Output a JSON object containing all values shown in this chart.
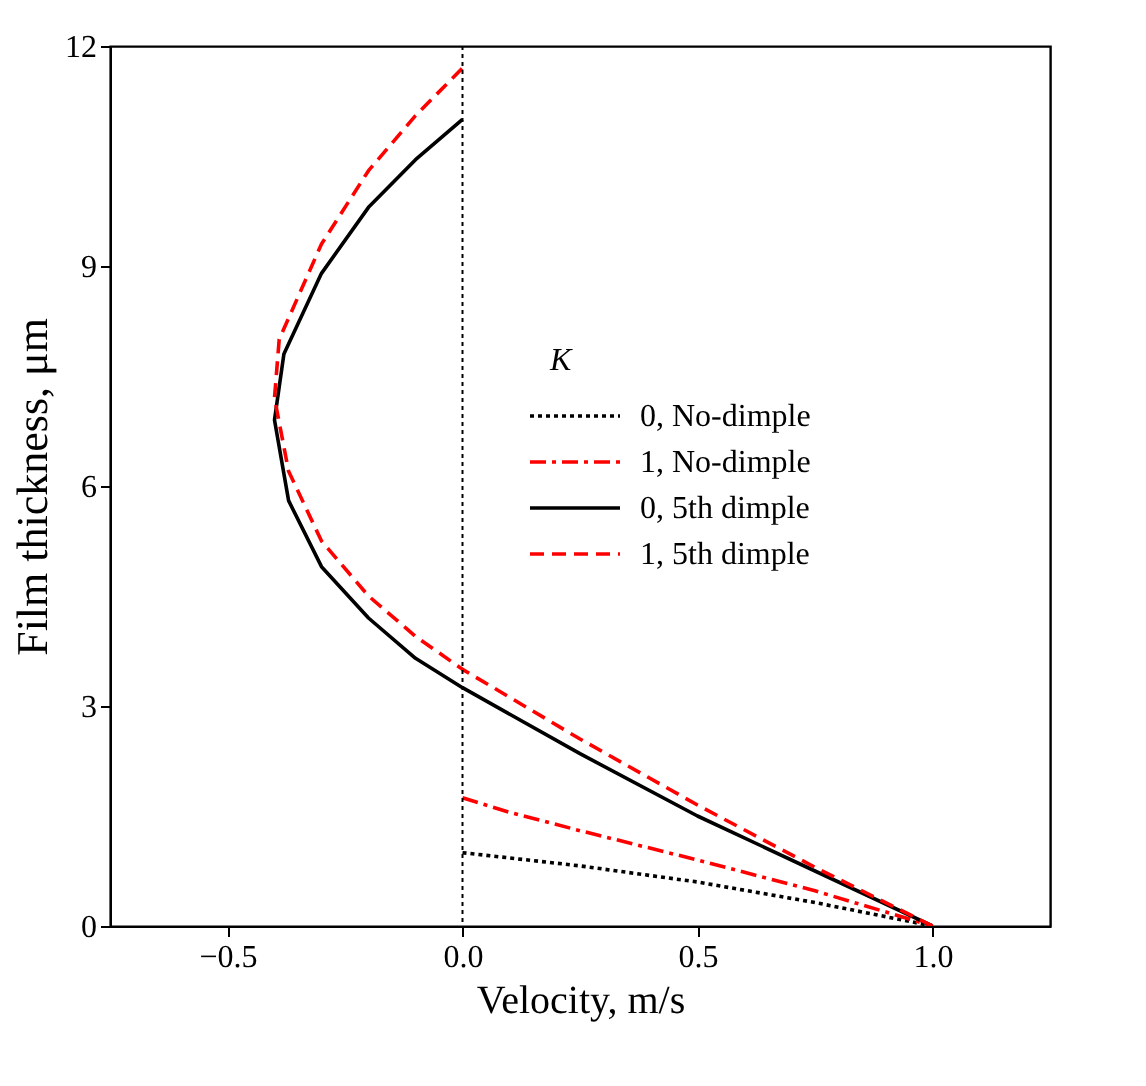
{
  "chart_data": {
    "type": "line",
    "xlabel": "Velocity, m/s",
    "ylabel": "Film thickness, μm",
    "legend_title": "K",
    "xlim": [
      -0.75,
      1.25
    ],
    "xticks": [
      -0.5,
      {
        "value": 0,
        "label": "0.0"
      },
      0.5,
      {
        "value": 1,
        "label": "1.0"
      }
    ],
    "ylim": [
      0,
      12
    ],
    "yticks": [
      0,
      3,
      6,
      9,
      12
    ],
    "grid": false,
    "legend": "top right",
    "marker": "none",
    "ref_lines": [
      {
        "axis": "x",
        "value": 0,
        "color": "#000000",
        "line_style": "dotted"
      }
    ],
    "series": [
      {
        "name": "0, No-dimple",
        "color": "#000000",
        "line_style": "dotted",
        "x": [
          0,
          0.25,
          0.5,
          0.75,
          1.0
        ],
        "values": [
          1.0,
          0.82,
          0.6,
          0.32,
          0
        ]
      },
      {
        "name": "1, No-dimple",
        "color": "#ff0000",
        "line_style": "dashdot",
        "x": [
          0,
          0.1,
          0.25,
          0.5,
          0.75,
          1.0
        ],
        "values": [
          1.75,
          1.55,
          1.3,
          0.9,
          0.48,
          0
        ]
      },
      {
        "name": "0, 5th dimple",
        "color": "#000000",
        "line_style": "solid",
        "x": [
          1.0,
          0.75,
          0.5,
          0.25,
          0,
          -0.1,
          -0.2,
          -0.3,
          -0.37,
          -0.4,
          -0.38,
          -0.3,
          -0.2,
          -0.1,
          0
        ],
        "values": [
          0,
          0.75,
          1.5,
          2.35,
          3.25,
          3.65,
          4.2,
          4.9,
          5.8,
          6.9,
          7.8,
          8.9,
          9.8,
          10.45,
          11.0
        ]
      },
      {
        "name": "1, 5th dimple",
        "color": "#ff0000",
        "line_style": "dashed",
        "x": [
          1.0,
          0.75,
          0.5,
          0.25,
          0,
          -0.1,
          -0.2,
          -0.3,
          -0.37,
          -0.4,
          -0.39,
          -0.3,
          -0.2,
          -0.1,
          0
        ],
        "values": [
          0,
          0.8,
          1.65,
          2.55,
          3.5,
          3.95,
          4.5,
          5.25,
          6.2,
          7.2,
          8.0,
          9.3,
          10.3,
          11.05,
          11.7
        ]
      }
    ]
  }
}
